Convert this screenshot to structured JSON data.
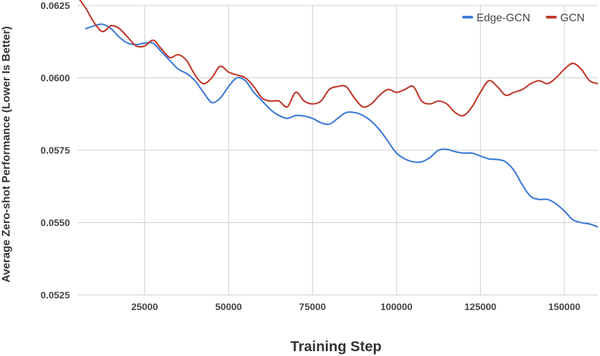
{
  "chart_data": {
    "type": "line",
    "xlabel": "Training Step",
    "ylabel": "Average Zero-shot Performance (Lower Is Better)",
    "xlim": [
      5000,
      160000
    ],
    "ylim": [
      0.0525,
      0.0625
    ],
    "x_ticks": [
      25000,
      50000,
      75000,
      100000,
      125000,
      150000
    ],
    "x_tick_labels": [
      "25000",
      "50000",
      "75000",
      "100000",
      "125000",
      "150000"
    ],
    "y_ticks": [
      0.0525,
      0.055,
      0.0575,
      0.06,
      0.0625
    ],
    "y_tick_labels": [
      "0.0525",
      "0.0550",
      "0.0575",
      "0.0600",
      "0.0625"
    ],
    "grid": true,
    "legend_position": "top-right",
    "series": [
      {
        "name": "Edge-GCN",
        "color": "#3d7ad6",
        "x": [
          7500,
          10000,
          12500,
          15000,
          17500,
          20000,
          22500,
          25000,
          27500,
          30000,
          32500,
          35000,
          37500,
          40000,
          42500,
          45000,
          47500,
          50000,
          52500,
          55000,
          57500,
          60000,
          62500,
          65000,
          67500,
          70000,
          72500,
          75000,
          77500,
          80000,
          82500,
          85000,
          87500,
          90000,
          92500,
          95000,
          97500,
          100000,
          102500,
          105000,
          107500,
          110000,
          112500,
          115000,
          117500,
          120000,
          122500,
          125000,
          127500,
          130000,
          132500,
          135000,
          137500,
          140000,
          142500,
          145000,
          147500,
          150000,
          152500,
          155000,
          157500,
          160000
        ],
        "values": [
          0.0617,
          0.0618,
          0.06185,
          0.0617,
          0.0614,
          0.0612,
          0.06115,
          0.0612,
          0.0612,
          0.0609,
          0.0606,
          0.0603,
          0.06015,
          0.0599,
          0.0595,
          0.05915,
          0.0593,
          0.0597,
          0.06,
          0.0599,
          0.0595,
          0.0592,
          0.0589,
          0.0587,
          0.0586,
          0.0587,
          0.05868,
          0.0586,
          0.05845,
          0.0584,
          0.0586,
          0.0588,
          0.0588,
          0.0587,
          0.0585,
          0.0582,
          0.0578,
          0.0574,
          0.0572,
          0.0571,
          0.0571,
          0.05725,
          0.0575,
          0.05753,
          0.05745,
          0.0574,
          0.0574,
          0.0573,
          0.0572,
          0.05718,
          0.0571,
          0.0568,
          0.0563,
          0.0559,
          0.0558,
          0.0558,
          0.05565,
          0.0554,
          0.0551,
          0.055,
          0.05495,
          0.05485
        ]
      },
      {
        "name": "GCN",
        "color": "#c0392b",
        "x": [
          5000,
          7500,
          10000,
          12500,
          15000,
          17500,
          20000,
          22500,
          25000,
          27500,
          30000,
          32500,
          35000,
          37500,
          40000,
          42500,
          45000,
          47500,
          50000,
          52500,
          55000,
          57500,
          60000,
          62500,
          65000,
          67500,
          70000,
          72500,
          75000,
          77500,
          80000,
          82500,
          85000,
          87500,
          90000,
          92500,
          95000,
          97500,
          100000,
          102500,
          105000,
          107500,
          110000,
          112500,
          115000,
          117500,
          120000,
          122500,
          125000,
          127500,
          130000,
          132500,
          135000,
          137500,
          140000,
          142500,
          145000,
          147500,
          150000,
          152500,
          155000,
          157500,
          160000
        ],
        "values": [
          0.0628,
          0.0624,
          0.0619,
          0.0616,
          0.0618,
          0.0617,
          0.0614,
          0.0611,
          0.0611,
          0.0613,
          0.061,
          0.0607,
          0.0608,
          0.0606,
          0.0601,
          0.0598,
          0.06,
          0.0604,
          0.0602,
          0.0601,
          0.06,
          0.0597,
          0.0593,
          0.0592,
          0.0592,
          0.059,
          0.0595,
          0.0592,
          0.0591,
          0.0592,
          0.0596,
          0.0597,
          0.0597,
          0.0593,
          0.059,
          0.0591,
          0.0594,
          0.0596,
          0.0595,
          0.0596,
          0.0597,
          0.0592,
          0.0591,
          0.0592,
          0.0591,
          0.0588,
          0.0587,
          0.059,
          0.0595,
          0.0599,
          0.0597,
          0.0594,
          0.0595,
          0.0596,
          0.0598,
          0.0599,
          0.0598,
          0.06,
          0.0603,
          0.0605,
          0.0603,
          0.0599,
          0.0598
        ]
      }
    ]
  }
}
